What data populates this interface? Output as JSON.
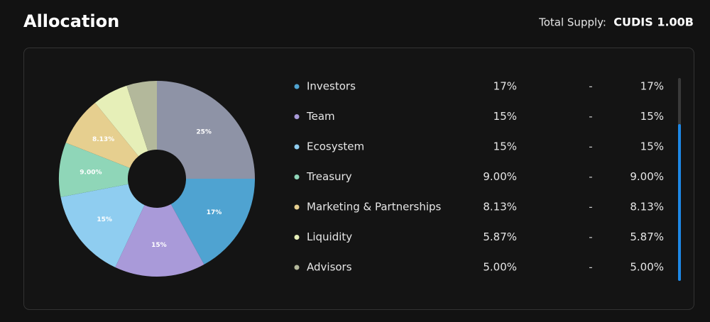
{
  "header": {
    "title": "Allocation",
    "supply_label": "Total Supply:",
    "supply_value": "CUDIS 1.00B"
  },
  "chart_data": {
    "type": "pie",
    "categories": [
      null,
      "Investors",
      "Team",
      "Ecosystem",
      "Treasury",
      "Marketing & Partnerships",
      "Liquidity",
      "Advisors"
    ],
    "values": [
      25,
      17,
      15,
      15,
      9,
      8.13,
      5.87,
      5
    ],
    "value_labels": [
      "25%",
      "17%",
      "15%",
      "15%",
      "9.00%",
      "8.13%",
      null,
      null
    ],
    "colors": [
      "#8e93a6",
      "#4fa3d1",
      "#a99ad9",
      "#8fcdf0",
      "#8fd6b8",
      "#e6cf8f",
      "#e6efb8",
      "#b3b89b"
    ]
  },
  "list": {
    "rows": [
      [
        "17%",
        "-",
        "17%"
      ],
      [
        "15%",
        "-",
        "15%"
      ],
      [
        "15%",
        "-",
        "15%"
      ],
      [
        "9.00%",
        "-",
        "9.00%"
      ],
      [
        "8.13%",
        "-",
        "8.13%"
      ],
      [
        "5.87%",
        "-",
        "5.87%"
      ],
      [
        "5.00%",
        "-",
        "5.00%"
      ]
    ]
  }
}
